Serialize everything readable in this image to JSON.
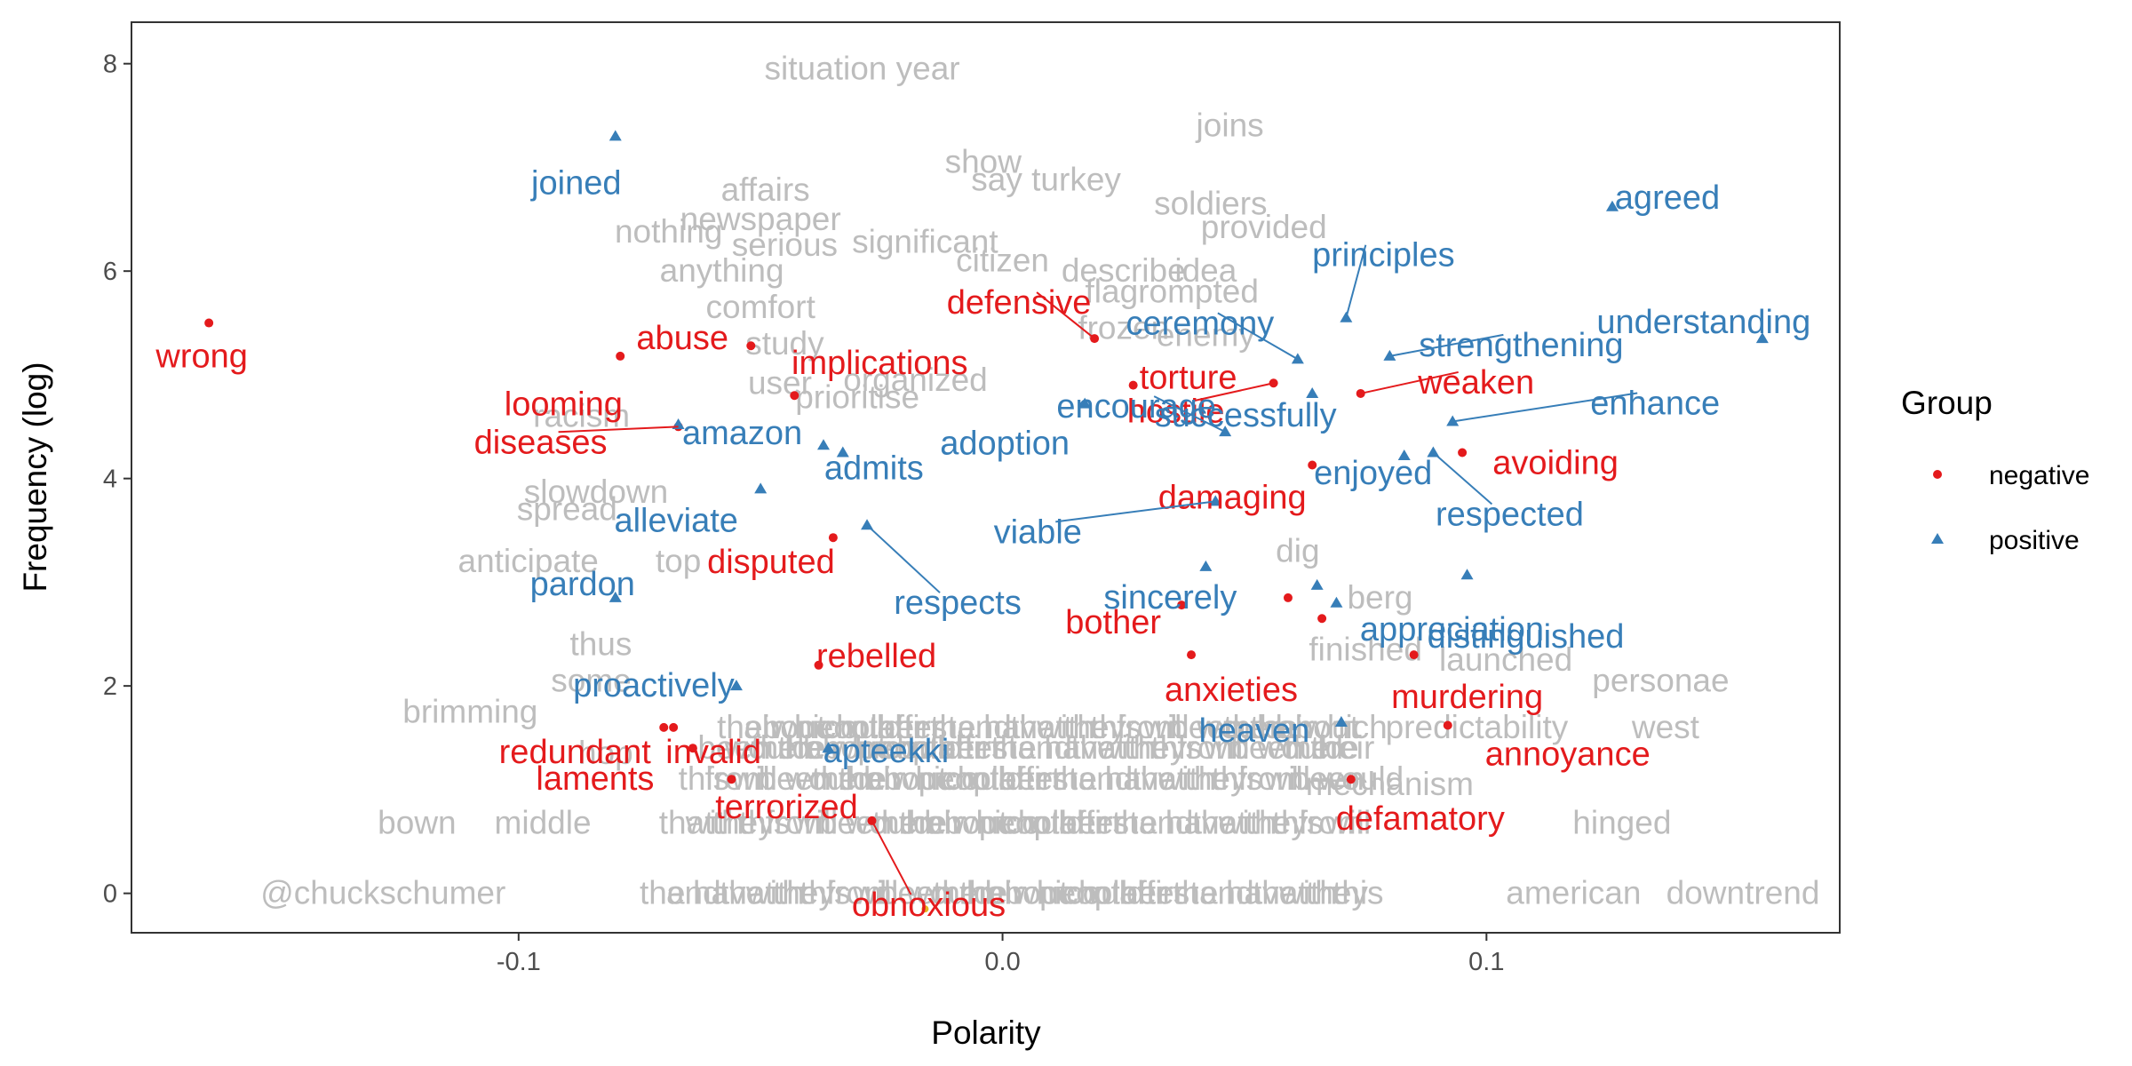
{
  "chart_data": {
    "type": "scatter",
    "xlabel": "Polarity",
    "ylabel": "Frequency (log)",
    "xlim": [
      -0.18,
      0.173
    ],
    "ylim": [
      -0.38,
      8.4
    ],
    "x_ticks": [
      -0.1,
      0.0,
      0.1
    ],
    "x_tick_labels": [
      "-0.1",
      "0.0",
      "0.1"
    ],
    "y_ticks": [
      0,
      2,
      4,
      6,
      8
    ],
    "y_tick_labels": [
      "0",
      "2",
      "4",
      "6",
      "8"
    ],
    "grid": false,
    "legend": {
      "title": "Group",
      "position": "right",
      "entries": [
        {
          "name": "negative",
          "color": "#e41a1c",
          "shape": "circle"
        },
        {
          "name": "positive",
          "color": "#377eb8",
          "shape": "triangle"
        }
      ]
    },
    "colors": {
      "negative": "#e41a1c",
      "positive": "#377eb8",
      "background_words": "#bdbdbd",
      "dense_baseline": "#b0b0b0"
    },
    "series": [
      {
        "name": "negative",
        "points": [
          {
            "word": "wrong",
            "x": -0.164,
            "y": 5.5
          },
          {
            "word": "abuse",
            "x": -0.079,
            "y": 5.18
          },
          {
            "word": "looming",
            "x": -0.043,
            "y": 4.8
          },
          {
            "word": "implications",
            "x": -0.052,
            "y": 5.28
          },
          {
            "word": "diseases",
            "x": -0.067,
            "y": 4.5
          },
          {
            "word": "disputed",
            "x": -0.035,
            "y": 3.43
          },
          {
            "word": "rebelled",
            "x": -0.038,
            "y": 2.2
          },
          {
            "word": "redundant",
            "x": -0.07,
            "y": 1.6
          },
          {
            "word": "invalid",
            "x": -0.068,
            "y": 1.6
          },
          {
            "word": "laments",
            "x": -0.064,
            "y": 1.4
          },
          {
            "word": "terrorized",
            "x": -0.056,
            "y": 1.1
          },
          {
            "word": "obnoxious",
            "x": -0.027,
            "y": 0.7
          },
          {
            "word": "defensive",
            "x": 0.019,
            "y": 5.35
          },
          {
            "word": "torture",
            "x": 0.027,
            "y": 4.9
          },
          {
            "word": "hostile",
            "x": 0.056,
            "y": 4.92
          },
          {
            "word": "weaken",
            "x": 0.074,
            "y": 4.82
          },
          {
            "word": "avoiding",
            "x": 0.095,
            "y": 4.25
          },
          {
            "word": "damaging",
            "x": 0.064,
            "y": 4.13
          },
          {
            "word": "bother",
            "x": 0.037,
            "y": 2.78
          },
          {
            "word": "anxieties",
            "x": 0.039,
            "y": 2.3
          },
          {
            "word": "murdering",
            "x": 0.085,
            "y": 2.3
          },
          {
            "word": "annoyance",
            "x": 0.092,
            "y": 1.62
          },
          {
            "word": "defamatory",
            "x": 0.072,
            "y": 1.1
          },
          {
            "word": "",
            "x": 0.059,
            "y": 2.85
          },
          {
            "word": "",
            "x": 0.066,
            "y": 2.65
          }
        ]
      },
      {
        "name": "positive",
        "points": [
          {
            "word": "joined",
            "x": -0.08,
            "y": 7.3
          },
          {
            "word": "agreed",
            "x": 0.126,
            "y": 6.62
          },
          {
            "word": "understanding",
            "x": 0.157,
            "y": 5.35
          },
          {
            "word": "principles",
            "x": 0.071,
            "y": 5.55
          },
          {
            "word": "strengthening",
            "x": 0.08,
            "y": 5.18
          },
          {
            "word": "ceremony",
            "x": 0.061,
            "y": 5.15
          },
          {
            "word": "enhance",
            "x": 0.093,
            "y": 4.55
          },
          {
            "word": "adoption",
            "x": 0.017,
            "y": 4.72
          },
          {
            "word": "successfully",
            "x": 0.064,
            "y": 4.82
          },
          {
            "word": "enjoyed",
            "x": 0.083,
            "y": 4.22
          },
          {
            "word": "respected",
            "x": 0.089,
            "y": 4.25
          },
          {
            "word": "amazon",
            "x": -0.067,
            "y": 4.52
          },
          {
            "word": "encourage",
            "x": 0.046,
            "y": 4.45
          },
          {
            "word": "admits",
            "x": -0.033,
            "y": 4.25
          },
          {
            "word": "alleviate",
            "x": -0.05,
            "y": 3.9
          },
          {
            "word": "viable",
            "x": 0.044,
            "y": 3.78
          },
          {
            "word": "respects",
            "x": -0.028,
            "y": 3.55
          },
          {
            "word": "sincerely",
            "x": 0.042,
            "y": 3.15
          },
          {
            "word": "appreciation",
            "x": 0.069,
            "y": 2.8
          },
          {
            "word": "pardon",
            "x": -0.08,
            "y": 2.85
          },
          {
            "word": "distinguished",
            "x": 0.096,
            "y": 3.07
          },
          {
            "word": "proactively",
            "x": -0.055,
            "y": 2.0
          },
          {
            "word": "apteekki",
            "x": -0.036,
            "y": 1.4
          },
          {
            "word": "heaven",
            "x": 0.07,
            "y": 1.65
          },
          {
            "word": "",
            "x": -0.037,
            "y": 4.32
          },
          {
            "word": "",
            "x": 0.065,
            "y": 2.97
          }
        ]
      },
      {
        "name": "other",
        "points": [
          {
            "word": "situation year",
            "x": -0.029,
            "y": 7.95
          },
          {
            "word": "joins",
            "x": 0.047,
            "y": 7.4
          },
          {
            "word": "show",
            "x": -0.004,
            "y": 7.05
          },
          {
            "word": "say turkey",
            "x": 0.009,
            "y": 6.88
          },
          {
            "word": "affairs",
            "x": -0.049,
            "y": 6.78
          },
          {
            "word": "soldiers",
            "x": 0.043,
            "y": 6.65
          },
          {
            "word": "newspaper",
            "x": -0.05,
            "y": 6.5
          },
          {
            "word": "provided",
            "x": 0.054,
            "y": 6.42
          },
          {
            "word": "nothing",
            "x": -0.069,
            "y": 6.38
          },
          {
            "word": "serious",
            "x": -0.045,
            "y": 6.25
          },
          {
            "word": "significant",
            "x": -0.016,
            "y": 6.28
          },
          {
            "word": "citizen",
            "x": 0.0,
            "y": 6.1
          },
          {
            "word": "anything",
            "x": -0.058,
            "y": 6.0
          },
          {
            "word": "describe",
            "x": 0.025,
            "y": 6.0
          },
          {
            "word": "idea",
            "x": 0.042,
            "y": 6.0
          },
          {
            "word": "flagrompted",
            "x": 0.035,
            "y": 5.8
          },
          {
            "word": "comfort",
            "x": -0.05,
            "y": 5.65
          },
          {
            "word": "study",
            "x": -0.045,
            "y": 5.3
          },
          {
            "word": "frozen",
            "x": 0.025,
            "y": 5.45
          },
          {
            "word": "enemy",
            "x": 0.042,
            "y": 5.38
          },
          {
            "word": "user",
            "x": -0.046,
            "y": 4.92
          },
          {
            "word": "prioritise",
            "x": -0.03,
            "y": 4.78
          },
          {
            "word": "organized",
            "x": -0.018,
            "y": 4.95
          },
          {
            "word": "racism",
            "x": -0.087,
            "y": 4.6
          },
          {
            "word": "slowdown",
            "x": -0.084,
            "y": 3.87
          },
          {
            "word": "spread",
            "x": -0.09,
            "y": 3.7
          },
          {
            "word": "anticipate",
            "x": -0.098,
            "y": 3.2
          },
          {
            "word": "top",
            "x": -0.067,
            "y": 3.2
          },
          {
            "word": "thus",
            "x": -0.083,
            "y": 2.4
          },
          {
            "word": "some",
            "x": -0.085,
            "y": 2.05
          },
          {
            "word": "brimming",
            "x": -0.11,
            "y": 1.75
          },
          {
            "word": "hop",
            "x": -0.082,
            "y": 1.35
          },
          {
            "word": "bown",
            "x": -0.121,
            "y": 0.68
          },
          {
            "word": "middle",
            "x": -0.095,
            "y": 0.68
          },
          {
            "word": "@chuckschumer",
            "x": -0.128,
            "y": 0.0
          },
          {
            "word": "dig",
            "x": 0.061,
            "y": 3.3
          },
          {
            "word": "berg",
            "x": 0.078,
            "y": 2.85
          },
          {
            "word": "finished",
            "x": 0.075,
            "y": 2.35
          },
          {
            "word": "launched",
            "x": 0.104,
            "y": 2.25
          },
          {
            "word": "personae",
            "x": 0.136,
            "y": 2.05
          },
          {
            "word": "predictability",
            "x": 0.098,
            "y": 1.6
          },
          {
            "word": "west",
            "x": 0.137,
            "y": 1.6
          },
          {
            "word": "mechanism",
            "x": 0.08,
            "y": 1.05
          },
          {
            "word": "hinged",
            "x": 0.128,
            "y": 0.68
          },
          {
            "word": "american",
            "x": 0.118,
            "y": 0.0
          },
          {
            "word": "downtrend",
            "x": 0.153,
            "y": 0.0
          }
        ]
      }
    ],
    "dense_baseline_rows_y": [
      0.0,
      0.68,
      1.1,
      1.4,
      1.6
    ],
    "mid_marker": {
      "x": -0.016,
      "y": -0.15,
      "color": "#e6b422"
    }
  }
}
